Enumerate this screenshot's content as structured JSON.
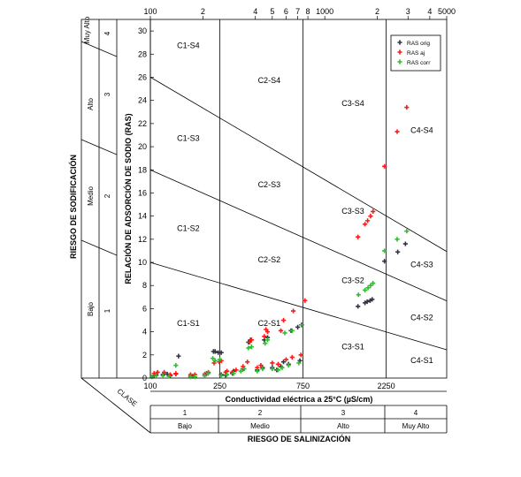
{
  "chart_data": {
    "type": "scatter",
    "title": "",
    "x_scale": "log",
    "xlim": [
      100,
      5000
    ],
    "ylim": [
      0,
      31
    ],
    "top_ticks": [
      "100",
      "2",
      "4",
      "5",
      "6",
      "7",
      "8",
      "1000",
      "2",
      "3",
      "4",
      "5000"
    ],
    "y_ticks": [
      "0",
      "2",
      "4",
      "6",
      "8",
      "10",
      "12",
      "14",
      "16",
      "18",
      "20",
      "22",
      "24",
      "26",
      "28",
      "30"
    ],
    "bottom_ticks": [
      "100",
      "250",
      "750",
      "2250"
    ],
    "xlabel": "Conductividad eléctrica a 25°C (µS/cm)",
    "ylabel": "RELACIÓN DE ADSORCIÓN DE SODIO (RAS)",
    "sodification_title": "RIESGO DE SODIFICACIÓN",
    "salinization_title": "RIESGO DE SALINIZACIÓN",
    "clase_label": "CLASE",
    "sodification_levels": [
      {
        "name": "Bajo",
        "num": "1"
      },
      {
        "name": "Medio",
        "num": "2"
      },
      {
        "name": "Alto",
        "num": "3"
      },
      {
        "name": "Muy Alto",
        "num": "4"
      }
    ],
    "salinization_levels": [
      {
        "name": "Bajo",
        "num": "1"
      },
      {
        "name": "Medio",
        "num": "2"
      },
      {
        "name": "Alto",
        "num": "3"
      },
      {
        "name": "Muy Alto",
        "num": "4"
      }
    ],
    "classes": [
      {
        "label": "C1-S1",
        "x": 165,
        "y": 4.5
      },
      {
        "label": "C1-S2",
        "x": 165,
        "y": 12.7
      },
      {
        "label": "C1-S3",
        "x": 165,
        "y": 20.5
      },
      {
        "label": "C1-S4",
        "x": 165,
        "y": 28.5
      },
      {
        "label": "C2-S1",
        "x": 480,
        "y": 4.5
      },
      {
        "label": "C2-S2",
        "x": 480,
        "y": 10.0
      },
      {
        "label": "C2-S3",
        "x": 480,
        "y": 16.5
      },
      {
        "label": "C2-S4",
        "x": 480,
        "y": 25.5
      },
      {
        "label": "C3-S1",
        "x": 1450,
        "y": 2.5
      },
      {
        "label": "C3-S2",
        "x": 1450,
        "y": 8.2
      },
      {
        "label": "C3-S3",
        "x": 1450,
        "y": 14.2
      },
      {
        "label": "C3-S4",
        "x": 1450,
        "y": 23.5
      },
      {
        "label": "C4-S1",
        "x": 3600,
        "y": 1.3
      },
      {
        "label": "C4-S2",
        "x": 3600,
        "y": 5.0
      },
      {
        "label": "C4-S3",
        "x": 3600,
        "y": 9.6
      },
      {
        "label": "C4-S4",
        "x": 3600,
        "y": 21.2
      }
    ],
    "boundaries_x": [
      250,
      750,
      2250
    ],
    "series": [
      {
        "name": "RAS orig",
        "color": "#333344",
        "points": [
          [
            105,
            0.2
          ],
          [
            108,
            0.25
          ],
          [
            118,
            0.3
          ],
          [
            125,
            0.35
          ],
          [
            130,
            0.2
          ],
          [
            140,
            0.35
          ],
          [
            145,
            1.9
          ],
          [
            170,
            0.15
          ],
          [
            175,
            0.15
          ],
          [
            205,
            0.2
          ],
          [
            210,
            0.4
          ],
          [
            230,
            2.3
          ],
          [
            235,
            2.3
          ],
          [
            245,
            2.2
          ],
          [
            255,
            2.2
          ],
          [
            255,
            0.3
          ],
          [
            270,
            0.25
          ],
          [
            295,
            0.4
          ],
          [
            300,
            0.6
          ],
          [
            340,
            0.8
          ],
          [
            365,
            3.1
          ],
          [
            375,
            3.3
          ],
          [
            410,
            0.7
          ],
          [
            440,
            0.9
          ],
          [
            450,
            3.3
          ],
          [
            470,
            3.5
          ],
          [
            500,
            0.9
          ],
          [
            530,
            0.7
          ],
          [
            560,
            1.0
          ],
          [
            580,
            1.4
          ],
          [
            620,
            1.2
          ],
          [
            640,
            4.1
          ],
          [
            700,
            4.4
          ],
          [
            720,
            1.5
          ],
          [
            735,
            4.6
          ],
          [
            1550,
            6.2
          ],
          [
            1700,
            6.5
          ],
          [
            1750,
            6.6
          ],
          [
            1820,
            6.7
          ],
          [
            1870,
            6.8
          ],
          [
            2200,
            10.1
          ],
          [
            2620,
            10.9
          ],
          [
            2900,
            11.6
          ]
        ]
      },
      {
        "name": "RAS aj",
        "color": "#ff1a1a",
        "points": [
          [
            105,
            0.4
          ],
          [
            110,
            0.5
          ],
          [
            120,
            0.5
          ],
          [
            130,
            0.3
          ],
          [
            140,
            0.4
          ],
          [
            170,
            0.3
          ],
          [
            180,
            0.3
          ],
          [
            205,
            0.35
          ],
          [
            215,
            0.5
          ],
          [
            232,
            1.3
          ],
          [
            248,
            1.4
          ],
          [
            255,
            1.5
          ],
          [
            270,
            0.5
          ],
          [
            275,
            0.6
          ],
          [
            295,
            0.5
          ],
          [
            310,
            0.7
          ],
          [
            340,
            1.0
          ],
          [
            360,
            1.4
          ],
          [
            370,
            3.1
          ],
          [
            380,
            3.3
          ],
          [
            410,
            0.9
          ],
          [
            430,
            1.1
          ],
          [
            450,
            3.6
          ],
          [
            460,
            4.2
          ],
          [
            470,
            4.0
          ],
          [
            500,
            1.3
          ],
          [
            540,
            1.2
          ],
          [
            560,
            4.1
          ],
          [
            580,
            5.0
          ],
          [
            600,
            1.6
          ],
          [
            650,
            1.8
          ],
          [
            660,
            5.8
          ],
          [
            730,
            2.0
          ],
          [
            770,
            6.7
          ],
          [
            1550,
            12.2
          ],
          [
            1700,
            13.3
          ],
          [
            1760,
            13.6
          ],
          [
            1830,
            14.0
          ],
          [
            1890,
            14.4
          ],
          [
            2200,
            18.3
          ],
          [
            2600,
            21.3
          ],
          [
            2950,
            23.4
          ]
        ]
      },
      {
        "name": "RAS corr",
        "color": "#33bb33",
        "points": [
          [
            102,
            0.1
          ],
          [
            108,
            0.2
          ],
          [
            118,
            0.2
          ],
          [
            128,
            0.15
          ],
          [
            140,
            1.1
          ],
          [
            170,
            0.1
          ],
          [
            180,
            0.1
          ],
          [
            205,
            0.2
          ],
          [
            215,
            0.4
          ],
          [
            228,
            1.7
          ],
          [
            235,
            1.5
          ],
          [
            250,
            1.6
          ],
          [
            255,
            0.2
          ],
          [
            275,
            0.3
          ],
          [
            300,
            0.4
          ],
          [
            330,
            0.6
          ],
          [
            345,
            0.8
          ],
          [
            365,
            2.6
          ],
          [
            380,
            2.7
          ],
          [
            410,
            0.6
          ],
          [
            440,
            0.8
          ],
          [
            455,
            3.0
          ],
          [
            470,
            3.3
          ],
          [
            500,
            0.8
          ],
          [
            540,
            0.7
          ],
          [
            570,
            0.9
          ],
          [
            590,
            3.9
          ],
          [
            620,
            1.1
          ],
          [
            650,
            4.1
          ],
          [
            710,
            1.3
          ],
          [
            740,
            4.6
          ],
          [
            1560,
            7.2
          ],
          [
            1700,
            7.6
          ],
          [
            1770,
            7.8
          ],
          [
            1830,
            8.0
          ],
          [
            1890,
            8.2
          ],
          [
            2200,
            11.0
          ],
          [
            2600,
            12.0
          ],
          [
            2950,
            12.7
          ]
        ]
      }
    ]
  }
}
